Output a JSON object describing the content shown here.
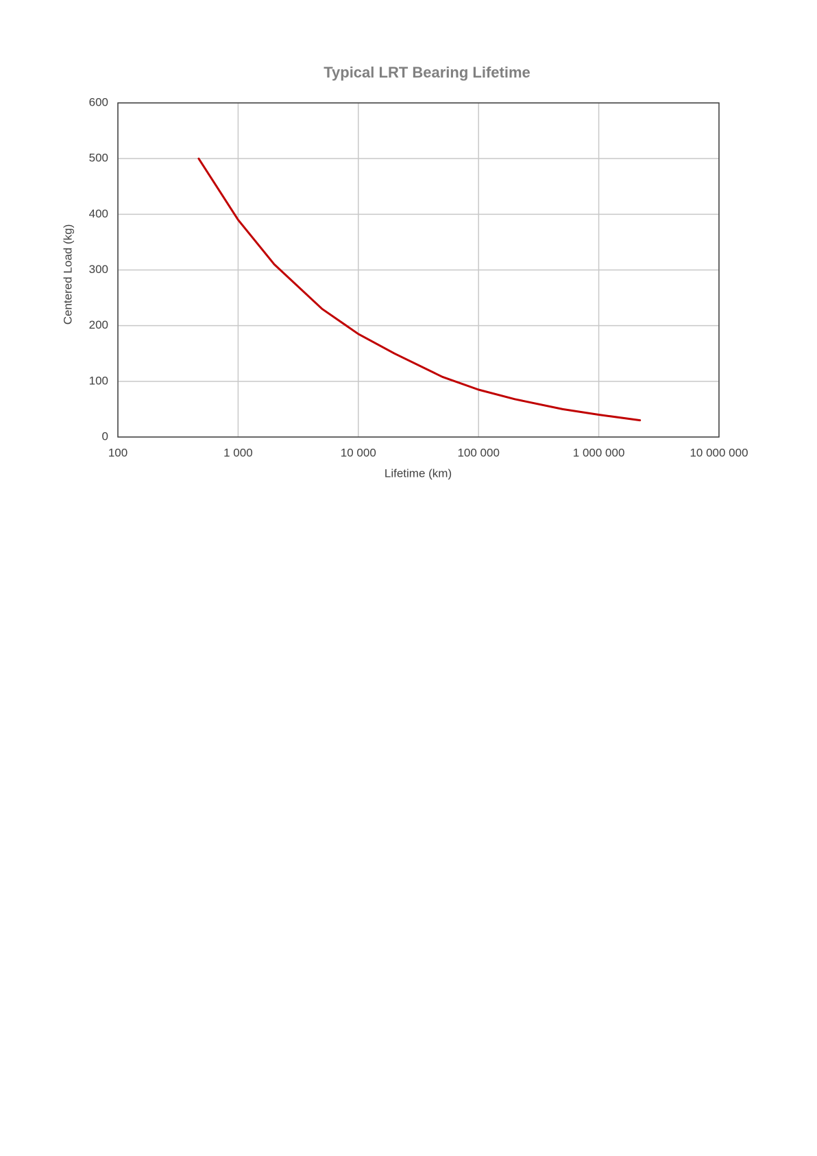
{
  "chart_data": {
    "type": "line",
    "title": "Typical LRT Bearing Lifetime",
    "x_label": "Lifetime (km)",
    "y_label": "Centered Load (kg)",
    "xscale": "log",
    "grid": true,
    "color": "#c00000",
    "x": [
      470,
      1000,
      2000,
      5000,
      10000,
      20000,
      50000,
      100000,
      200000,
      500000,
      1000000,
      2200000
    ],
    "values": [
      500,
      390,
      310,
      230,
      185,
      150,
      108,
      85,
      68,
      50,
      40,
      30
    ],
    "xlim": [
      100,
      10000000
    ],
    "xticks": [
      100,
      {
        "value": 1000,
        "label": "1 000"
      },
      {
        "value": 10000,
        "label": "10 000"
      },
      {
        "value": 100000,
        "label": "100 000"
      },
      {
        "value": 1000000,
        "label": "1 000 000"
      },
      {
        "value": 10000000,
        "label": "10 000 000"
      }
    ],
    "ylim": [
      0,
      600
    ],
    "yticks": [
      0,
      100,
      200,
      300,
      400,
      500,
      600
    ]
  }
}
